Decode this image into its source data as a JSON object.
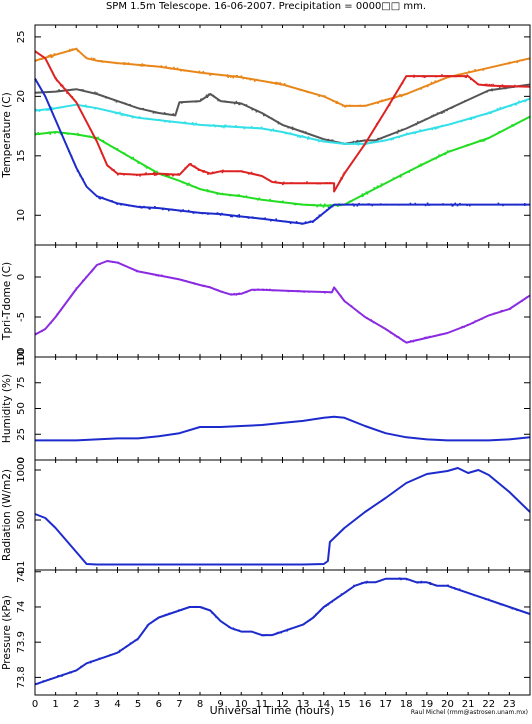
{
  "title": "SPM 1.5m Telescope. 16-06-2007. Precipitation = 0000□□ mm.",
  "xlabel": "Universal Time (hours)",
  "credit": "Raul Michel (rmm@astrosen.unam.mx)",
  "x_ticks": [
    "0",
    "1",
    "2",
    "3",
    "4",
    "5",
    "6",
    "7",
    "8",
    "9",
    "10",
    "11",
    "12",
    "13",
    "14",
    "15",
    "16",
    "17",
    "18",
    "19",
    "20",
    "21",
    "22",
    "23"
  ],
  "chart_data": [
    {
      "type": "scatter",
      "ylabel": "Temperature (C)",
      "ylim": [
        7.5,
        26
      ],
      "yticks": [
        10,
        15,
        20,
        25
      ],
      "xlim": [
        0,
        24
      ],
      "series": [
        {
          "color": "#e8861a",
          "x": [
            0,
            1,
            2,
            2.5,
            3,
            4,
            6,
            8,
            10,
            12,
            14,
            15,
            16,
            18,
            20,
            22,
            24
          ],
          "values": [
            23.0,
            23.5,
            24.0,
            23.2,
            23.0,
            22.8,
            22.5,
            22.0,
            21.6,
            21.0,
            20.0,
            19.2,
            19.2,
            20.2,
            21.6,
            22.4,
            23.2
          ]
        },
        {
          "color": "#555555",
          "x": [
            0,
            1,
            2,
            3,
            4,
            5,
            6,
            6.8,
            7,
            8,
            8.5,
            9,
            10,
            11,
            12,
            13,
            14,
            15,
            16,
            16.5,
            18,
            20,
            22,
            24
          ],
          "values": [
            20.3,
            20.4,
            20.6,
            20.2,
            19.6,
            19.0,
            18.6,
            18.4,
            19.5,
            19.6,
            20.2,
            19.6,
            19.4,
            18.6,
            17.6,
            17.0,
            16.4,
            16.0,
            16.3,
            16.3,
            17.3,
            18.9,
            20.5,
            21.0
          ]
        },
        {
          "color": "#33e0e8",
          "x": [
            0,
            1,
            2,
            3,
            4,
            5,
            6,
            8,
            10,
            11,
            12,
            13,
            14,
            15,
            16,
            17,
            18,
            20,
            22,
            24
          ],
          "values": [
            18.8,
            19.0,
            19.3,
            19.0,
            18.6,
            18.2,
            18.0,
            17.6,
            17.4,
            17.3,
            17.0,
            16.6,
            16.2,
            16.0,
            16.0,
            16.3,
            16.8,
            17.6,
            18.6,
            19.8
          ]
        },
        {
          "color": "#22dd22",
          "x": [
            0,
            1,
            2,
            3,
            4,
            5,
            6,
            7,
            8,
            9,
            10,
            11,
            12,
            13,
            14,
            15,
            16,
            18,
            20,
            22,
            24
          ],
          "values": [
            16.8,
            17.0,
            16.8,
            16.5,
            15.5,
            14.5,
            13.5,
            12.9,
            12.2,
            11.8,
            11.6,
            11.3,
            11.1,
            10.9,
            10.8,
            10.9,
            11.8,
            13.6,
            15.3,
            16.5,
            18.3
          ]
        },
        {
          "color": "#dd2222",
          "x": [
            0,
            0.5,
            1,
            2,
            3,
            3.5,
            4,
            5,
            6,
            7,
            7.5,
            8,
            8.5,
            9,
            10,
            11,
            11.5,
            12,
            13,
            14.5,
            14.5,
            15,
            16,
            17,
            18,
            20,
            21,
            21.5,
            22,
            24
          ],
          "values": [
            23.8,
            23.2,
            21.5,
            19.5,
            16.2,
            14.2,
            13.5,
            13.4,
            13.5,
            13.4,
            14.3,
            13.8,
            13.5,
            13.7,
            13.7,
            13.3,
            12.8,
            12.7,
            12.7,
            12.7,
            12.0,
            13.5,
            16.0,
            18.8,
            21.7,
            21.7,
            21.7,
            21.0,
            20.9,
            20.8
          ]
        },
        {
          "color": "#1e2bcc",
          "x": [
            0,
            0.5,
            1,
            1.5,
            2,
            2.5,
            3,
            4,
            5,
            6,
            7,
            8,
            9,
            10,
            11,
            12,
            13,
            13.5,
            14,
            14.5,
            15,
            16,
            18,
            20,
            22,
            24
          ],
          "values": [
            21.5,
            20.0,
            18.0,
            16.0,
            14.0,
            12.4,
            11.6,
            11.0,
            10.7,
            10.6,
            10.4,
            10.2,
            10.1,
            9.9,
            9.7,
            9.5,
            9.3,
            9.5,
            10.2,
            10.9,
            10.9,
            10.9,
            10.9,
            10.9,
            10.9,
            10.9
          ]
        }
      ]
    },
    {
      "type": "scatter",
      "ylabel": "Tpri-Tdome (C)",
      "ylim": [
        -10,
        4
      ],
      "yticks": [
        -10,
        -5,
        0
      ],
      "xlim": [
        0,
        24
      ],
      "series": [
        {
          "color": "#8a2be2",
          "x": [
            0,
            0.5,
            1,
            2,
            3,
            3.5,
            4,
            5,
            6,
            7,
            8,
            8.5,
            9,
            9.5,
            10,
            10.5,
            11,
            12,
            13,
            14.4,
            14.5,
            15,
            16,
            17,
            18,
            20,
            21,
            22,
            23,
            24
          ],
          "values": [
            -7.2,
            -6.5,
            -5.0,
            -1.5,
            1.5,
            2.0,
            1.8,
            0.7,
            0.2,
            -0.3,
            -1.0,
            -1.3,
            -1.8,
            -2.2,
            -2.1,
            -1.6,
            -1.6,
            -1.7,
            -1.8,
            -1.9,
            -1.3,
            -3.0,
            -5.0,
            -6.5,
            -8.2,
            -7.0,
            -6.0,
            -4.8,
            -4.0,
            -2.3
          ]
        }
      ]
    },
    {
      "type": "line",
      "ylabel": "Humidity (%)",
      "ylim": [
        0,
        100
      ],
      "yticks": [
        0,
        25,
        50,
        75,
        100
      ],
      "xlim": [
        0,
        24
      ],
      "series": [
        {
          "color": "#1e2bcc",
          "x": [
            0,
            2,
            3,
            4,
            5,
            6,
            7,
            8,
            9,
            10,
            11,
            12,
            13,
            14,
            14.5,
            15,
            16,
            17,
            18,
            19,
            20,
            21,
            22,
            23,
            24
          ],
          "values": [
            19,
            19,
            20,
            21,
            21,
            23,
            26,
            32,
            32,
            33,
            34,
            36,
            38,
            41,
            42,
            41,
            33,
            26,
            22,
            20,
            19,
            19,
            19,
            20,
            22
          ]
        }
      ]
    },
    {
      "type": "line",
      "ylabel": "Radiation (W/m2)",
      "ylim": [
        0,
        1100
      ],
      "yticks": [
        0,
        500,
        1000
      ],
      "xlim": [
        0,
        24
      ],
      "series": [
        {
          "color": "#1e2bcc",
          "x": [
            0,
            0.5,
            1,
            2,
            2.5,
            3,
            5,
            8,
            10,
            12,
            13,
            14,
            14.2,
            14.3,
            15,
            16,
            17,
            18,
            19,
            20,
            20.5,
            21,
            21.5,
            22,
            23,
            24
          ],
          "values": [
            560,
            520,
            420,
            180,
            60,
            55,
            55,
            55,
            55,
            55,
            55,
            60,
            90,
            280,
            420,
            580,
            720,
            870,
            960,
            990,
            1020,
            970,
            1000,
            950,
            780,
            580
          ]
        }
      ]
    },
    {
      "type": "scatter",
      "ylabel": "Pressure (kPa)",
      "ylim": [
        73.75,
        74.105
      ],
      "yticks": [
        73.8,
        73.9,
        74.0,
        74.1
      ],
      "xlim": [
        0,
        24
      ],
      "series": [
        {
          "color": "#1e2bcc",
          "x": [
            0,
            0.5,
            1,
            1.5,
            2,
            2.5,
            3,
            3.5,
            4,
            4.5,
            5,
            5.5,
            6,
            6.5,
            7,
            7.5,
            8,
            8.5,
            9,
            9.5,
            10,
            10.5,
            11,
            11.5,
            12,
            12.5,
            13,
            13.5,
            14,
            14.5,
            15,
            15.5,
            16,
            16.5,
            17,
            17.5,
            18,
            18.5,
            19,
            19.5,
            20,
            20.5,
            21,
            21.5,
            22,
            22.5,
            23,
            23.5,
            24
          ],
          "values": [
            73.78,
            73.79,
            73.8,
            73.81,
            73.82,
            73.84,
            73.85,
            73.86,
            73.87,
            73.89,
            73.91,
            73.95,
            73.97,
            73.98,
            73.99,
            74.0,
            74.0,
            73.99,
            73.96,
            73.94,
            73.93,
            73.93,
            73.92,
            73.92,
            73.93,
            73.94,
            73.95,
            73.97,
            74.0,
            74.02,
            74.04,
            74.06,
            74.07,
            74.07,
            74.08,
            74.08,
            74.08,
            74.07,
            74.07,
            74.06,
            74.06,
            74.05,
            74.04,
            74.03,
            74.02,
            74.01,
            74.0,
            73.99,
            73.98
          ]
        }
      ]
    }
  ]
}
